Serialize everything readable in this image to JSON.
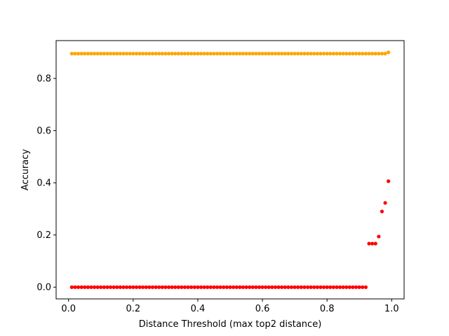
{
  "chart_data": {
    "type": "scatter",
    "title": "",
    "xlabel": "Distance Threshold (max top2 distance)",
    "ylabel": "Accuracy",
    "xlim": [
      -0.0385,
      1.0385
    ],
    "ylim": [
      -0.045,
      0.945
    ],
    "xticks": [
      0.0,
      0.2,
      0.4,
      0.6,
      0.8,
      1.0
    ],
    "xtick_labels": [
      "0.0",
      "0.2",
      "0.4",
      "0.6",
      "0.8",
      "1.0"
    ],
    "yticks": [
      0.0,
      0.2,
      0.4,
      0.6,
      0.8
    ],
    "ytick_labels": [
      "0.0",
      "0.2",
      "0.4",
      "0.6",
      "0.8"
    ],
    "grid": false,
    "legend": false,
    "series": [
      {
        "color": "#ffa500",
        "x": [
          0.01,
          0.02,
          0.03,
          0.04,
          0.05,
          0.06,
          0.07,
          0.08,
          0.09,
          0.1,
          0.11,
          0.12,
          0.13,
          0.14,
          0.15,
          0.16,
          0.17,
          0.18,
          0.19,
          0.2,
          0.21,
          0.22,
          0.23,
          0.24,
          0.25,
          0.26,
          0.27,
          0.28,
          0.29,
          0.3,
          0.31,
          0.32,
          0.33,
          0.34,
          0.35,
          0.36,
          0.37,
          0.38,
          0.39,
          0.4,
          0.41,
          0.42,
          0.43,
          0.44,
          0.45,
          0.46,
          0.47,
          0.48,
          0.49,
          0.5,
          0.51,
          0.52,
          0.53,
          0.54,
          0.55,
          0.56,
          0.57,
          0.58,
          0.59,
          0.6,
          0.61,
          0.62,
          0.63,
          0.64,
          0.65,
          0.66,
          0.67,
          0.68,
          0.69,
          0.7,
          0.71,
          0.72,
          0.73,
          0.74,
          0.75,
          0.76,
          0.77,
          0.78,
          0.79,
          0.8,
          0.81,
          0.82,
          0.83,
          0.84,
          0.85,
          0.86,
          0.87,
          0.88,
          0.89,
          0.9,
          0.91,
          0.92,
          0.93,
          0.94,
          0.95,
          0.96,
          0.97,
          0.98,
          0.99
        ],
        "y": [
          0.895,
          0.895,
          0.895,
          0.895,
          0.895,
          0.895,
          0.895,
          0.895,
          0.895,
          0.895,
          0.895,
          0.895,
          0.895,
          0.895,
          0.895,
          0.895,
          0.895,
          0.895,
          0.895,
          0.895,
          0.895,
          0.895,
          0.895,
          0.895,
          0.895,
          0.895,
          0.895,
          0.895,
          0.895,
          0.895,
          0.895,
          0.895,
          0.895,
          0.895,
          0.895,
          0.895,
          0.895,
          0.895,
          0.895,
          0.895,
          0.895,
          0.895,
          0.895,
          0.895,
          0.895,
          0.895,
          0.895,
          0.895,
          0.895,
          0.895,
          0.895,
          0.895,
          0.895,
          0.895,
          0.895,
          0.895,
          0.895,
          0.895,
          0.895,
          0.895,
          0.895,
          0.895,
          0.895,
          0.895,
          0.895,
          0.895,
          0.895,
          0.895,
          0.895,
          0.895,
          0.895,
          0.895,
          0.895,
          0.895,
          0.895,
          0.895,
          0.895,
          0.895,
          0.895,
          0.895,
          0.895,
          0.895,
          0.895,
          0.895,
          0.895,
          0.895,
          0.895,
          0.895,
          0.895,
          0.895,
          0.895,
          0.895,
          0.895,
          0.895,
          0.895,
          0.895,
          0.895,
          0.895,
          0.9
        ]
      },
      {
        "color": "#ff0000",
        "x": [
          0.01,
          0.02,
          0.03,
          0.04,
          0.05,
          0.06,
          0.07,
          0.08,
          0.09,
          0.1,
          0.11,
          0.12,
          0.13,
          0.14,
          0.15,
          0.16,
          0.17,
          0.18,
          0.19,
          0.2,
          0.21,
          0.22,
          0.23,
          0.24,
          0.25,
          0.26,
          0.27,
          0.28,
          0.29,
          0.3,
          0.31,
          0.32,
          0.33,
          0.34,
          0.35,
          0.36,
          0.37,
          0.38,
          0.39,
          0.4,
          0.41,
          0.42,
          0.43,
          0.44,
          0.45,
          0.46,
          0.47,
          0.48,
          0.49,
          0.5,
          0.51,
          0.52,
          0.53,
          0.54,
          0.55,
          0.56,
          0.57,
          0.58,
          0.59,
          0.6,
          0.61,
          0.62,
          0.63,
          0.64,
          0.65,
          0.66,
          0.67,
          0.68,
          0.69,
          0.7,
          0.71,
          0.72,
          0.73,
          0.74,
          0.75,
          0.76,
          0.77,
          0.78,
          0.79,
          0.8,
          0.81,
          0.82,
          0.83,
          0.84,
          0.85,
          0.86,
          0.87,
          0.88,
          0.89,
          0.9,
          0.91,
          0.92,
          0.93,
          0.94,
          0.95,
          0.96,
          0.97,
          0.98,
          0.99
        ],
        "y": [
          0,
          0,
          0,
          0,
          0,
          0,
          0,
          0,
          0,
          0,
          0,
          0,
          0,
          0,
          0,
          0,
          0,
          0,
          0,
          0,
          0,
          0,
          0,
          0,
          0,
          0,
          0,
          0,
          0,
          0,
          0,
          0,
          0,
          0,
          0,
          0,
          0,
          0,
          0,
          0,
          0,
          0,
          0,
          0,
          0,
          0,
          0,
          0,
          0,
          0,
          0,
          0,
          0,
          0,
          0,
          0,
          0,
          0,
          0,
          0,
          0,
          0,
          0,
          0,
          0,
          0,
          0,
          0,
          0,
          0,
          0,
          0,
          0,
          0,
          0,
          0,
          0,
          0,
          0,
          0,
          0,
          0,
          0,
          0,
          0,
          0,
          0,
          0,
          0,
          0,
          0,
          0,
          0.167,
          0.167,
          0.167,
          0.194,
          0.29,
          0.323,
          0.406
        ]
      }
    ]
  }
}
